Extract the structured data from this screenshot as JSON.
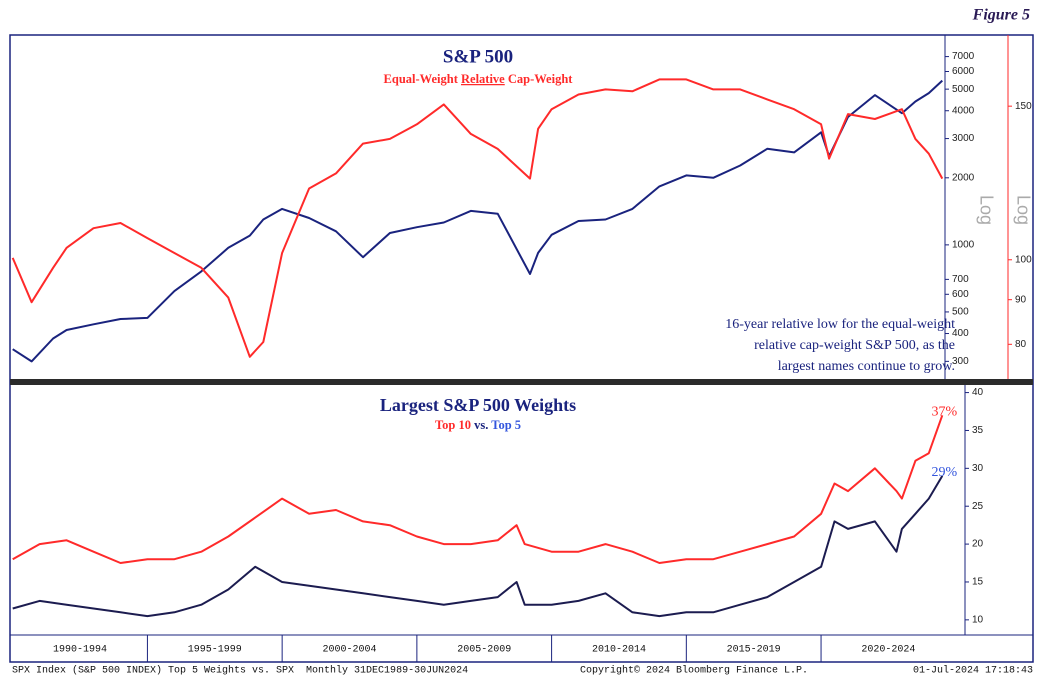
{
  "figure_label": "Figure 5",
  "chart_data": [
    {
      "type": "line",
      "title": "S&P 500",
      "subtitle_parts": [
        "Equal-Weight",
        "Relative",
        "Cap-Weight"
      ],
      "y_axis_label": "Log",
      "y2_axis_label": "Log",
      "x": [
        1990,
        1990.7,
        1991.5,
        1992,
        1993,
        1994,
        1995,
        1996,
        1997,
        1998,
        1998.8,
        1999.3,
        2000,
        2001,
        2002,
        2003,
        2004,
        2005,
        2006,
        2007,
        2008,
        2009.2,
        2009.5,
        2010,
        2011,
        2012,
        2013,
        2014,
        2015,
        2016,
        2017,
        2018,
        2019,
        2020,
        2020.3,
        2021,
        2022,
        2023,
        2023.5,
        2024,
        2024.5
      ],
      "xlim": [
        1989.9,
        2024.6
      ],
      "ylim": [
        250,
        8750
      ],
      "y_scale": "log",
      "yticks": [
        300,
        400,
        500,
        600,
        700,
        1000,
        2000,
        3000,
        4000,
        5000,
        6000,
        7000
      ],
      "y2lim": [
        73,
        181
      ],
      "y2_scale": "log",
      "y2ticks": [
        80,
        90,
        100,
        150
      ],
      "series": [
        {
          "color": "#1a237e",
          "values": [
            340,
            300,
            380,
            415,
            440,
            465,
            470,
            620,
            760,
            970,
            1100,
            1300,
            1450,
            1320,
            1150,
            880,
            1130,
            1200,
            1260,
            1420,
            1380,
            740,
            920,
            1110,
            1280,
            1300,
            1450,
            1830,
            2050,
            2000,
            2270,
            2700,
            2600,
            3200,
            2500,
            3750,
            4700,
            3900,
            4400,
            4800,
            5460
          ]
        },
        {
          "color": "#ff2a2a",
          "axis": "y2",
          "values": [
            100.5,
            89.4,
            97.9,
            103.2,
            108.7,
            110.2,
            105.9,
            101.8,
            97.9,
            90.5,
            77.4,
            80.5,
            101.8,
            120.7,
            125.6,
            135.9,
            137.6,
            143,
            150.7,
            139.4,
            134,
            123.9,
            141.3,
            148.8,
            154.7,
            156.8,
            156,
            161,
            161,
            156.8,
            156.8,
            152.7,
            148.8,
            143,
            130.6,
            146.9,
            145,
            148.8,
            137.6,
            132.3,
            123.9
          ]
        }
      ],
      "annotation": [
        "16-year relative low for the equal-weight",
        "relative cap-weight S&P 500, as the",
        "largest names continue to grow."
      ]
    },
    {
      "type": "line",
      "title": "Largest S&P 500 Weights",
      "legend_separator": "vs.",
      "x": [
        1990,
        1991,
        1992,
        1993,
        1994,
        1995,
        1996,
        1997,
        1998,
        1999,
        2000,
        2001,
        2002,
        2003,
        2004,
        2005,
        2006,
        2007,
        2008,
        2008.7,
        2009,
        2010,
        2011,
        2012,
        2013,
        2014,
        2015,
        2016,
        2017,
        2018,
        2019,
        2020,
        2020.5,
        2021,
        2022,
        2022.8,
        2023,
        2023.5,
        2024,
        2024.5
      ],
      "xlim": [
        1989.9,
        2024.6
      ],
      "xticks": [
        {
          "value": 1992.5,
          "label": "1990-1994"
        },
        {
          "value": 1997.5,
          "label": "1995-1999"
        },
        {
          "value": 2002.5,
          "label": "2000-2004"
        },
        {
          "value": 2007.5,
          "label": "2005-2009"
        },
        {
          "value": 2012.5,
          "label": "2010-2014"
        },
        {
          "value": 2017.5,
          "label": "2015-2019"
        },
        {
          "value": 2022.5,
          "label": "2020-2024"
        }
      ],
      "ylim": [
        8,
        41
      ],
      "yticks": [
        10,
        15,
        20,
        25,
        30,
        35,
        40
      ],
      "series": [
        {
          "name": "Top 10",
          "color": "#ff2a2a",
          "label_color": "#ff2a2a",
          "values": [
            18,
            20,
            20.5,
            19,
            17.5,
            18,
            18,
            19,
            21,
            23.5,
            26,
            24,
            24.5,
            23,
            22.5,
            21,
            20,
            20,
            20.5,
            22.5,
            20,
            19,
            19,
            20,
            19,
            17.5,
            18,
            18,
            19,
            20,
            21,
            24,
            28,
            27,
            30,
            27,
            26,
            31,
            32,
            37
          ],
          "value_labels": [
            null,
            null,
            null,
            null,
            null,
            null,
            null,
            null,
            null,
            null,
            null,
            null,
            null,
            null,
            null,
            null,
            null,
            null,
            null,
            null,
            null,
            null,
            null,
            null,
            null,
            null,
            null,
            null,
            null,
            null,
            null,
            null,
            null,
            null,
            null,
            null,
            null,
            null,
            null,
            "37%"
          ]
        },
        {
          "name": "Top 5",
          "color": "#1c1c50",
          "label_color": "#3355dd",
          "values": [
            11.5,
            12.5,
            12,
            11.5,
            11,
            10.5,
            11,
            12,
            14,
            17,
            15,
            14.5,
            14,
            13.5,
            13,
            12.5,
            12,
            12.5,
            13,
            15,
            12,
            12,
            12.5,
            13.5,
            11,
            10.5,
            11,
            11,
            12,
            13,
            15,
            17,
            23,
            22,
            23,
            19,
            22,
            24,
            26,
            29
          ],
          "value_labels": [
            null,
            null,
            null,
            null,
            null,
            null,
            null,
            null,
            null,
            null,
            null,
            null,
            null,
            null,
            null,
            null,
            null,
            null,
            null,
            null,
            null,
            null,
            null,
            null,
            null,
            null,
            null,
            null,
            null,
            null,
            null,
            null,
            null,
            null,
            null,
            null,
            null,
            null,
            null,
            "29%"
          ]
        }
      ]
    }
  ],
  "footer": {
    "source": "SPX Index (S&P 500 INDEX) Top 5 Weights vs. SPX  Monthly 31DEC1989-30JUN2024",
    "copyright": "Copyright© 2024 Bloomberg Finance L.P.",
    "timestamp": "01-Jul-2024 17:18:43"
  }
}
